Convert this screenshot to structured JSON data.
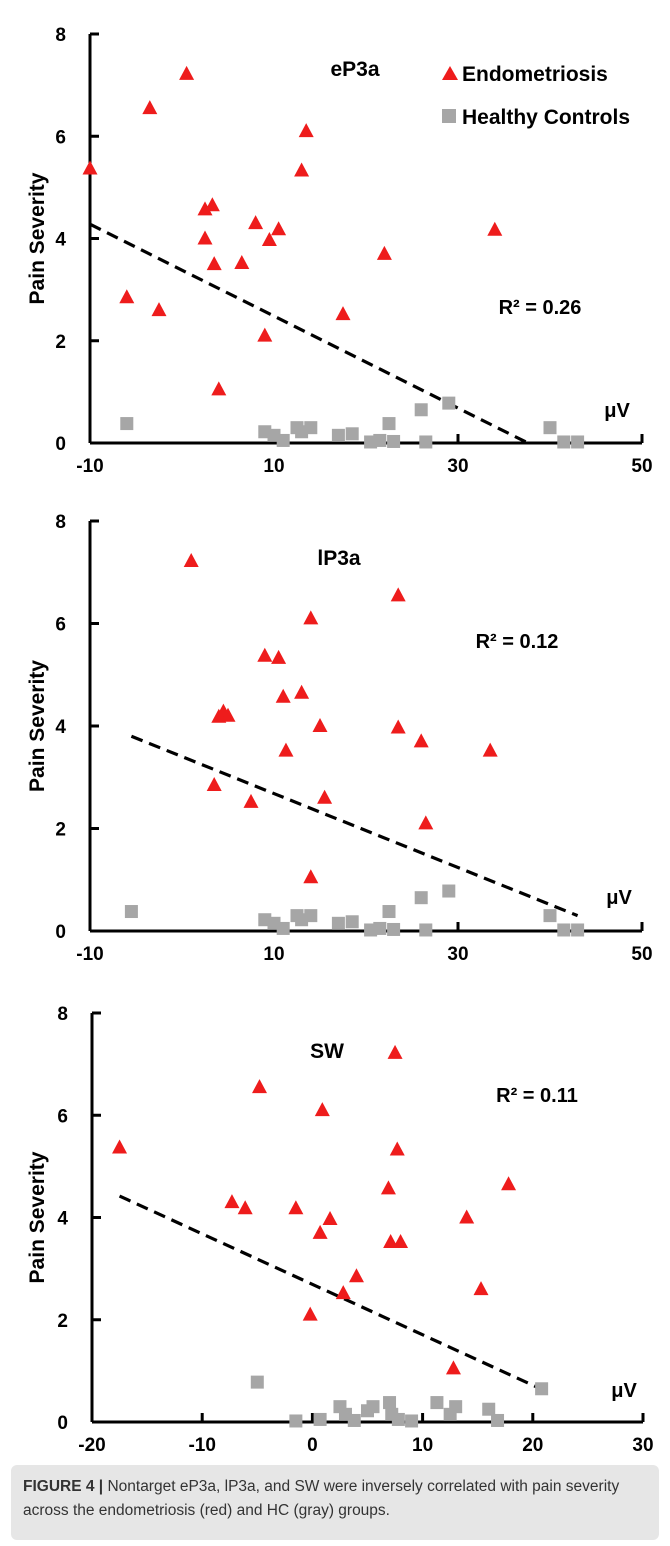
{
  "figure": {
    "caption_label": "FIGURE 4 |",
    "caption_text": " Nontarget eP3a, lP3a, and SW were inversely correlated with pain severity across the endometriosis (red) and HC (gray) groups."
  },
  "colors": {
    "endometriosis": "#ee1c1c",
    "healthy_controls": "#a6a6a6",
    "trendline": "#000000"
  },
  "chart_data": [
    {
      "type": "scatter",
      "title": "eP3a",
      "xlabel": "μV",
      "ylabel": "Pain Severity",
      "xlim": [
        -10,
        50
      ],
      "ylim": [
        0,
        8
      ],
      "xticks": [
        -10,
        10,
        30,
        50
      ],
      "yticks": [
        0,
        2,
        4,
        6,
        8
      ],
      "annotation": "R² = 0.26",
      "legend": [
        "Endometriosis",
        "Healthy Controls"
      ],
      "legend_position": "top-right",
      "trendline": [
        [
          -10,
          4.28
        ],
        [
          37.6,
          0
        ]
      ],
      "series": [
        {
          "name": "Endometriosis",
          "marker": "triangle",
          "points": [
            [
              -10,
              5.37
            ],
            [
              -6,
              2.85
            ],
            [
              -3.5,
              6.55
            ],
            [
              -2.5,
              2.6
            ],
            [
              0.5,
              7.22
            ],
            [
              2.5,
              4.57
            ],
            [
              2.5,
              4.0
            ],
            [
              3.3,
              4.65
            ],
            [
              3.5,
              3.5
            ],
            [
              4,
              1.05
            ],
            [
              6.5,
              3.52
            ],
            [
              8,
              4.3
            ],
            [
              9,
              2.1
            ],
            [
              9.5,
              3.97
            ],
            [
              10.5,
              4.18
            ],
            [
              13,
              5.33
            ],
            [
              13.5,
              6.1
            ],
            [
              17.5,
              2.52
            ],
            [
              22,
              3.7
            ],
            [
              34,
              4.17
            ]
          ]
        },
        {
          "name": "Healthy Controls",
          "marker": "square",
          "points": [
            [
              -6,
              0.38
            ],
            [
              9,
              0.22
            ],
            [
              10,
              0.15
            ],
            [
              11,
              0.05
            ],
            [
              12.5,
              0.3
            ],
            [
              13,
              0.22
            ],
            [
              14,
              0.3
            ],
            [
              17,
              0.15
            ],
            [
              18.5,
              0.18
            ],
            [
              20.5,
              0.02
            ],
            [
              21.5,
              0.05
            ],
            [
              22.5,
              0.38
            ],
            [
              23,
              0.03
            ],
            [
              26,
              0.65
            ],
            [
              26.5,
              0.02
            ],
            [
              29,
              0.78
            ],
            [
              40,
              0.3
            ],
            [
              41.5,
              0.02
            ],
            [
              43,
              0.02
            ]
          ]
        }
      ]
    },
    {
      "type": "scatter",
      "title": "lP3a",
      "xlabel": "μV",
      "ylabel": "Pain Severity",
      "xlim": [
        -10,
        50
      ],
      "ylim": [
        0,
        8
      ],
      "xticks": [
        -10,
        10,
        30,
        50
      ],
      "yticks": [
        0,
        2,
        4,
        6,
        8
      ],
      "annotation": "R² = 0.12",
      "trendline": [
        [
          -5.5,
          3.8
        ],
        [
          43,
          0.3
        ]
      ],
      "series": [
        {
          "name": "Endometriosis",
          "marker": "triangle",
          "points": [
            [
              1,
              7.22
            ],
            [
              3.5,
              2.85
            ],
            [
              4,
              4.18
            ],
            [
              4.5,
              4.28
            ],
            [
              5,
              4.2
            ],
            [
              7.5,
              2.52
            ],
            [
              9,
              5.37
            ],
            [
              10.5,
              5.33
            ],
            [
              11,
              4.57
            ],
            [
              11.3,
              3.52
            ],
            [
              13,
              4.65
            ],
            [
              14,
              1.05
            ],
            [
              14,
              6.1
            ],
            [
              15,
              4.0
            ],
            [
              15.5,
              2.6
            ],
            [
              23.5,
              6.55
            ],
            [
              23.5,
              3.97
            ],
            [
              26,
              3.7
            ],
            [
              26.5,
              2.1
            ],
            [
              33.5,
              3.52
            ]
          ]
        },
        {
          "name": "Healthy Controls",
          "marker": "square",
          "points": [
            [
              -5.5,
              0.38
            ],
            [
              9,
              0.22
            ],
            [
              10,
              0.15
            ],
            [
              11,
              0.05
            ],
            [
              12.5,
              0.3
            ],
            [
              13,
              0.22
            ],
            [
              14,
              0.3
            ],
            [
              17,
              0.15
            ],
            [
              18.5,
              0.18
            ],
            [
              20.5,
              0.02
            ],
            [
              21.5,
              0.05
            ],
            [
              22.5,
              0.38
            ],
            [
              23,
              0.03
            ],
            [
              26,
              0.65
            ],
            [
              26.5,
              0.02
            ],
            [
              29,
              0.78
            ],
            [
              40,
              0.3
            ],
            [
              41.5,
              0.02
            ],
            [
              43,
              0.02
            ]
          ]
        }
      ]
    },
    {
      "type": "scatter",
      "title": "SW",
      "xlabel": "μV",
      "ylabel": "Pain Severity",
      "xlim": [
        -20,
        30
      ],
      "ylim": [
        0,
        8
      ],
      "xticks": [
        -20,
        -10,
        0,
        10,
        20,
        30
      ],
      "yticks": [
        0,
        2,
        4,
        6,
        8
      ],
      "annotation": "R² = 0.11",
      "trendline": [
        [
          -17.5,
          4.42
        ],
        [
          20.5,
          0.67
        ]
      ],
      "series": [
        {
          "name": "Endometriosis",
          "marker": "triangle",
          "points": [
            [
              -17.5,
              5.37
            ],
            [
              -4.8,
              6.55
            ],
            [
              -7.3,
              4.3
            ],
            [
              -6.1,
              4.18
            ],
            [
              -1.5,
              4.18
            ],
            [
              0.7,
              3.7
            ],
            [
              0.9,
              6.1
            ],
            [
              1.6,
              3.97
            ],
            [
              -0.2,
              2.1
            ],
            [
              2.8,
              2.52
            ],
            [
              4,
              2.85
            ],
            [
              6.9,
              4.57
            ],
            [
              7.1,
              3.52
            ],
            [
              7.5,
              7.22
            ],
            [
              7.7,
              5.33
            ],
            [
              8,
              3.52
            ],
            [
              12.8,
              1.05
            ],
            [
              14,
              4.0
            ],
            [
              15.3,
              2.6
            ],
            [
              17.8,
              4.65
            ]
          ]
        },
        {
          "name": "Healthy Controls",
          "marker": "square",
          "points": [
            [
              -5,
              0.78
            ],
            [
              -1.5,
              0.02
            ],
            [
              0.7,
              0.05
            ],
            [
              2.5,
              0.3
            ],
            [
              3,
              0.15
            ],
            [
              3.8,
              0.03
            ],
            [
              5,
              0.22
            ],
            [
              5.5,
              0.3
            ],
            [
              7,
              0.38
            ],
            [
              7.2,
              0.15
            ],
            [
              7.8,
              0.05
            ],
            [
              9,
              0.02
            ],
            [
              11.3,
              0.38
            ],
            [
              12.5,
              0.15
            ],
            [
              13,
              0.3
            ],
            [
              16,
              0.25
            ],
            [
              16.8,
              0.03
            ],
            [
              20.8,
              0.65
            ]
          ]
        }
      ]
    }
  ]
}
